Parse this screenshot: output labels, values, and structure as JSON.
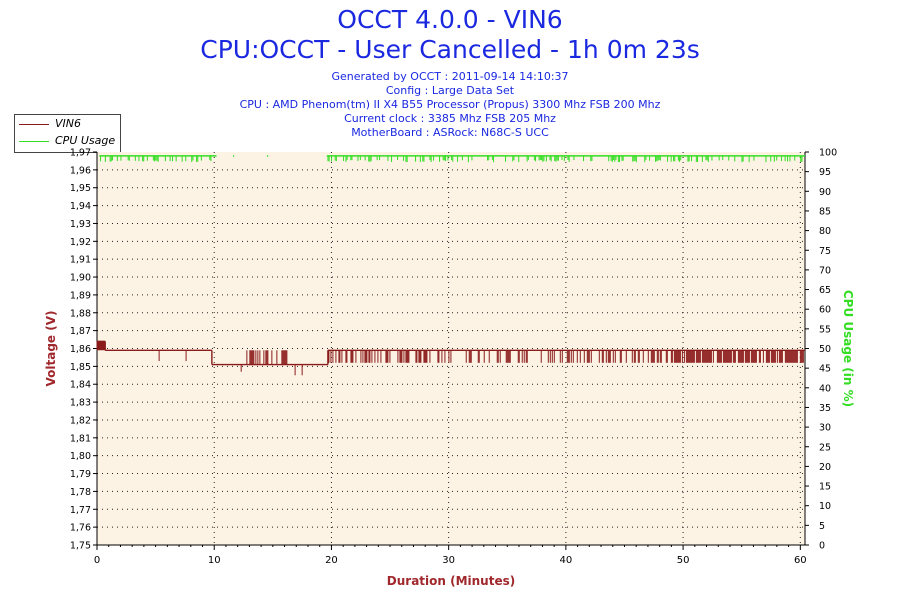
{
  "header": {
    "title": "OCCT 4.0.0 - VIN6",
    "subtitle": "CPU:OCCT - User Cancelled - 1h 0m 23s",
    "info_lines": [
      "Generated by OCCT : 2011-09-14 14:10:37",
      "Config : Large Data Set",
      "CPU : AMD Phenom(tm) II X4 B55 Processor (Propus) 3300 Mhz FSB 200 Mhz",
      "Current clock : 3385 Mhz FSB 205 Mhz",
      "MotherBoard : ASRock: N68C-S UCC"
    ]
  },
  "legend": [
    {
      "label": "VIN6",
      "color": "#8b1a1a"
    },
    {
      "label": "CPU Usage",
      "color": "#33dd22"
    }
  ],
  "colors": {
    "plot_background": "#fcf3e4",
    "voltage": "#8b1a1a",
    "cpu": "#33dd22",
    "grid": "#222222",
    "title": "#1a28e0",
    "left_axis_label": "#a0282c",
    "right_axis_label": "#33dd22"
  },
  "chart_data": {
    "type": "line",
    "xlabel": "Duration (Minutes)",
    "ylabel": "Voltage (V)",
    "y2label": "CPU Usage (in %)",
    "xlim": [
      0,
      60.4
    ],
    "ylim": [
      1.75,
      1.97
    ],
    "y2lim": [
      0,
      100
    ],
    "x_ticks": [
      "0",
      "10",
      "20",
      "30",
      "40",
      "50",
      "60"
    ],
    "y_ticks": [
      "1,75",
      "1,76",
      "1,77",
      "1,78",
      "1,79",
      "1,80",
      "1,81",
      "1,82",
      "1,83",
      "1,84",
      "1,85",
      "1,86",
      "1,87",
      "1,88",
      "1,89",
      "1,90",
      "1,91",
      "1,92",
      "1,93",
      "1,94",
      "1,95",
      "1,96",
      "1,97"
    ],
    "y2_ticks": [
      "0",
      "5",
      "10",
      "15",
      "20",
      "25",
      "30",
      "35",
      "40",
      "45",
      "50",
      "55",
      "60",
      "65",
      "70",
      "75",
      "80",
      "85",
      "90",
      "95",
      "100"
    ],
    "grid": true,
    "legend_position": "top-left",
    "series": [
      {
        "name": "VIN6",
        "axis": "left",
        "segments": [
          {
            "x": [
              0,
              0.7
            ],
            "y": 1.864,
            "noise": 1.859
          },
          {
            "x": [
              0.7,
              9.8
            ],
            "y": 1.859
          },
          {
            "x": [
              9.8,
              19.7
            ],
            "y": 1.851
          },
          {
            "x": [
              19.7,
              60.4
            ],
            "y": 1.859
          }
        ],
        "dips": [
          {
            "x": 5.3,
            "y": 1.853
          },
          {
            "x": 7.6,
            "y": 1.853
          },
          {
            "x": 12.3,
            "y": 1.847
          },
          {
            "x": 16.9,
            "y": 1.845
          },
          {
            "x": 17.5,
            "y": 1.845
          },
          {
            "x": 13.5,
            "y": 1.851
          }
        ],
        "spike_regions": [
          {
            "x": [
              12.7,
              16.2
            ],
            "lo": 1.851,
            "hi": 1.859,
            "density": 0.55
          },
          {
            "x": [
              19.7,
              30.5
            ],
            "lo": 1.852,
            "hi": 1.859,
            "density": 0.35
          },
          {
            "x": [
              31.5,
              38.0
            ],
            "lo": 1.852,
            "hi": 1.859,
            "density": 0.25
          },
          {
            "x": [
              38.5,
              49.0
            ],
            "lo": 1.852,
            "hi": 1.859,
            "density": 0.45
          },
          {
            "x": [
              49.0,
              60.4
            ],
            "lo": 1.852,
            "hi": 1.859,
            "density": 0.8
          }
        ]
      },
      {
        "name": "CPU Usage",
        "axis": "right",
        "segments": [
          {
            "x": [
              0.2,
              10.2
            ],
            "y": 99,
            "noise_to": 98
          },
          {
            "x": [
              11.6,
              11.7
            ],
            "y": 99,
            "noise_to": 98
          },
          {
            "x": [
              14.5,
              14.6
            ],
            "y": 99,
            "noise_to": 98
          },
          {
            "x": [
              19.6,
              60.4
            ],
            "y": 99,
            "noise_to": 98
          }
        ]
      }
    ]
  }
}
